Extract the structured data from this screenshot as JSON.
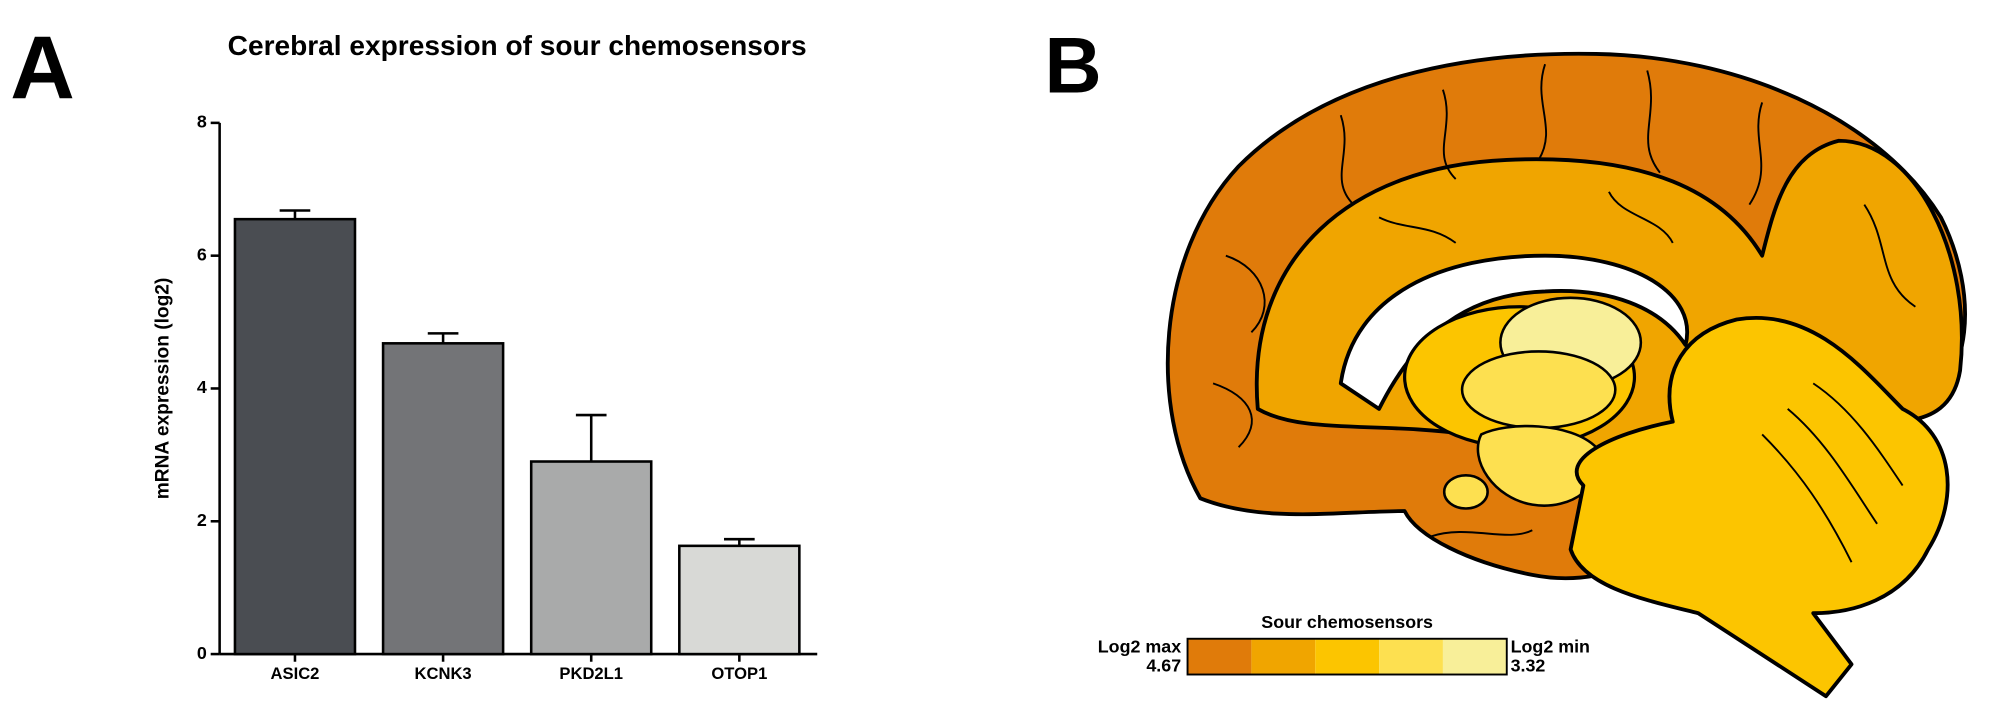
{
  "panel_a_label": "A",
  "panel_b_label": "B",
  "chart_data": {
    "type": "bar",
    "title": "Cerebral expression of sour chemosensors",
    "y_label": "mRNA expression (log2)",
    "categories": [
      "ASIC2",
      "KCNK3",
      "PKD2L1",
      "OTOP1"
    ],
    "values": [
      6.55,
      4.68,
      2.9,
      1.63
    ],
    "errors": [
      0.13,
      0.15,
      0.7,
      0.1
    ],
    "colors": [
      "#4a4d52",
      "#737477",
      "#a9aaaa",
      "#d8d9d6"
    ],
    "ylim": [
      0,
      8
    ],
    "yticks": [
      0,
      2,
      4,
      6,
      8
    ]
  },
  "brain_legend": {
    "title": "Sour chemosensors",
    "max_label": "Log2 max",
    "max_value": 4.67,
    "min_label": "Log2 min",
    "min_value": 3.32,
    "colors": [
      "#e07b0a",
      "#f0a500",
      "#fcc500",
      "#fde050",
      "#f8ef99"
    ]
  }
}
